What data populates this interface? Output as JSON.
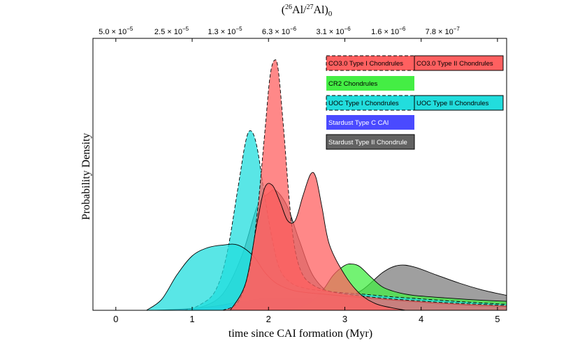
{
  "chart_data": {
    "type": "area",
    "title": "(26Al/27Al)0",
    "title_parts": {
      "open": "(",
      "mass1": "26",
      "el1": "Al/",
      "mass2": "27",
      "el2": "Al)",
      "sub": "0"
    },
    "xlabel": "time since CAI formation (Myr)",
    "ylabel": "Probability Density",
    "xlim": [
      -0.3,
      5.12
    ],
    "ylim": [
      0,
      1.0
    ],
    "x_ticks": [
      0,
      1,
      2,
      3,
      4,
      5
    ],
    "x_tick_labels": [
      "0",
      "1",
      "2",
      "3",
      "4",
      "5"
    ],
    "top_axis_ticks": [
      {
        "x": 0.0,
        "mant": "5.0",
        "exp": "−5"
      },
      {
        "x": 0.73,
        "mant": "2.5",
        "exp": "−5"
      },
      {
        "x": 1.43,
        "mant": "1.3",
        "exp": "−5"
      },
      {
        "x": 2.14,
        "mant": "6.3",
        "exp": "−6"
      },
      {
        "x": 2.85,
        "mant": "3.1",
        "exp": "−6"
      },
      {
        "x": 3.57,
        "mant": "1.6",
        "exp": "−6"
      },
      {
        "x": 4.28,
        "mant": "7.8",
        "exp": "−7"
      }
    ],
    "times_sign": "×",
    "top_base": "10",
    "series": [
      {
        "name": "Stardust Type II Chondrule",
        "color": "#7f7f7f",
        "dashed": false,
        "x": [
          0.8,
          1.1,
          1.4,
          1.65,
          1.85,
          2.0,
          2.1,
          2.25,
          2.4,
          2.6,
          2.9,
          3.2,
          3.5,
          3.7,
          3.9,
          4.2,
          4.5,
          4.8,
          5.12
        ],
        "y": [
          0,
          0.01,
          0.06,
          0.2,
          0.38,
          0.43,
          0.44,
          0.38,
          0.26,
          0.12,
          0.05,
          0.07,
          0.14,
          0.165,
          0.16,
          0.13,
          0.1,
          0.075,
          0.055
        ]
      },
      {
        "name": "Stardust Type C CAI",
        "color": "#4040ff",
        "dashed": false,
        "x": [
          0.5,
          0.9,
          1.3,
          1.6,
          1.9,
          2.1,
          2.4,
          2.7,
          3.0,
          3.3,
          3.6,
          3.9
        ],
        "y": [
          0,
          0.005,
          0.015,
          0.03,
          0.042,
          0.045,
          0.044,
          0.038,
          0.025,
          0.012,
          0.004,
          0
        ]
      },
      {
        "name": "CR2 Chondrules",
        "color": "#44ee44",
        "dashed": false,
        "x": [
          2.2,
          2.5,
          2.7,
          2.85,
          3.0,
          3.1,
          3.2,
          3.35,
          3.5,
          3.7,
          3.9,
          4.2,
          4.5,
          4.8,
          5.12
        ],
        "y": [
          0,
          0.02,
          0.07,
          0.13,
          0.165,
          0.17,
          0.16,
          0.12,
          0.085,
          0.065,
          0.055,
          0.048,
          0.042,
          0.037,
          0.033
        ]
      },
      {
        "name": "UOC Type I Chondrules",
        "color": "#22dddd",
        "dashed": true,
        "x": [
          0.9,
          1.1,
          1.3,
          1.45,
          1.6,
          1.7,
          1.77,
          1.85,
          1.95,
          2.05,
          2.15,
          2.3,
          2.5,
          2.7,
          3.0,
          3.3,
          3.6,
          3.9,
          4.2,
          4.5,
          4.8,
          5.12
        ],
        "y": [
          0,
          0.02,
          0.07,
          0.2,
          0.45,
          0.62,
          0.66,
          0.6,
          0.42,
          0.26,
          0.15,
          0.1,
          0.08,
          0.072,
          0.064,
          0.058,
          0.05,
          0.044,
          0.038,
          0.032,
          0.027,
          0.022
        ]
      },
      {
        "name": "UOC Type II Chondrules",
        "color": "#22dddd",
        "dashed": false,
        "x": [
          0.4,
          0.6,
          0.8,
          1.0,
          1.2,
          1.4,
          1.6,
          1.8,
          1.95,
          2.1,
          2.3,
          2.5,
          2.7,
          3.0,
          3.3,
          3.6,
          3.9,
          4.2,
          4.5,
          4.8,
          5.12
        ],
        "y": [
          0,
          0.04,
          0.13,
          0.2,
          0.23,
          0.24,
          0.24,
          0.2,
          0.14,
          0.1,
          0.075,
          0.065,
          0.06,
          0.052,
          0.045,
          0.038,
          0.032,
          0.026,
          0.021,
          0.017,
          0.014
        ]
      },
      {
        "name": "CO3.0 Type I Chondrules",
        "color": "#ff6060",
        "dashed": true,
        "x": [
          1.4,
          1.6,
          1.75,
          1.85,
          1.95,
          2.02,
          2.08,
          2.13,
          2.2,
          2.28,
          2.35,
          2.45,
          2.6,
          2.8,
          3.0,
          3.3,
          3.6,
          3.9,
          4.2,
          4.6,
          5.12
        ],
        "y": [
          0,
          0.03,
          0.15,
          0.35,
          0.65,
          0.86,
          0.92,
          0.88,
          0.66,
          0.38,
          0.22,
          0.13,
          0.09,
          0.07,
          0.06,
          0.05,
          0.042,
          0.036,
          0.03,
          0.024,
          0.018
        ]
      },
      {
        "name": "CO3.0 Type II Chondrules",
        "color": "#ff6060",
        "dashed": false,
        "x": [
          1.5,
          1.7,
          1.85,
          1.95,
          2.05,
          2.15,
          2.25,
          2.35,
          2.45,
          2.55,
          2.62,
          2.7,
          2.8,
          3.0,
          3.2,
          3.4,
          3.6,
          3.8
        ],
        "y": [
          0,
          0.1,
          0.32,
          0.45,
          0.46,
          0.4,
          0.33,
          0.33,
          0.42,
          0.5,
          0.49,
          0.38,
          0.24,
          0.13,
          0.06,
          0.025,
          0.01,
          0
        ]
      }
    ],
    "legend": [
      {
        "label": "CO3.0 Type I Chondrules",
        "series": "CO3.0 Type I Chondrules"
      },
      {
        "label": "CO3.0 Type II Chondrules",
        "series": "CO3.0 Type II Chondrules"
      },
      {
        "label": "CR2 Chondrules",
        "series": "CR2 Chondrules"
      },
      {
        "label": "UOC Type I Chondrules",
        "series": "UOC Type I Chondrules"
      },
      {
        "label": "UOC Type II Chondrules",
        "series": "UOC Type II Chondrules"
      },
      {
        "label": "Stardust Type C CAI",
        "series": "Stardust Type C CAI"
      },
      {
        "label": "Stardust Type II Chondrule",
        "series": "Stardust Type II Chondrule"
      }
    ],
    "legend_position": "top-right",
    "grid": false
  }
}
